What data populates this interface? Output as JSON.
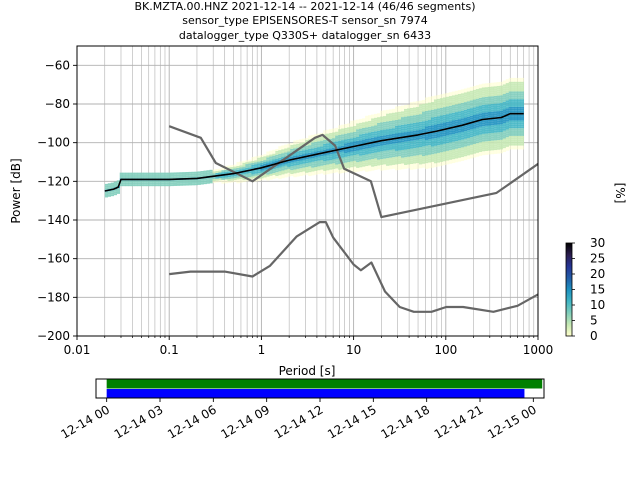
{
  "title": {
    "line1": "BK.MZTA.00.HNZ   2021-12-14 -- 2021-12-14  (46/46 segments)",
    "line2": "sensor_type EPISENSORES-T sensor_sn 7974",
    "line3": "datalogger_type Q330S+ datalogger_sn 6433"
  },
  "chart_data": [
    {
      "type": "heatmap",
      "xlabel": "Period [s]",
      "ylabel": "Power [dB]",
      "xscale": "log",
      "xlim": [
        0.01,
        1000
      ],
      "ylim": [
        -200,
        -50
      ],
      "x_ticks": [
        {
          "v": 0.01,
          "label": "0.01"
        },
        {
          "v": 0.1,
          "label": "0.1"
        },
        {
          "v": 1,
          "label": "1"
        },
        {
          "v": 10,
          "label": "10"
        },
        {
          "v": 100,
          "label": "100"
        },
        {
          "v": 1000,
          "label": "1000"
        }
      ],
      "y_ticks": [
        {
          "v": -60,
          "label": "−60"
        },
        {
          "v": -80,
          "label": "−80"
        },
        {
          "v": -100,
          "label": "−100"
        },
        {
          "v": -120,
          "label": "−120"
        },
        {
          "v": -140,
          "label": "−140"
        },
        {
          "v": -160,
          "label": "−160"
        },
        {
          "v": -180,
          "label": "−180"
        },
        {
          "v": -200,
          "label": "−200"
        }
      ],
      "grid": true,
      "series": [
        {
          "role": "mean",
          "color": "#000000",
          "points": [
            [
              0.02,
              -125
            ],
            [
              0.025,
              -124
            ],
            [
              0.028,
              -123
            ],
            [
              0.03,
              -119
            ],
            [
              0.05,
              -119
            ],
            [
              0.1,
              -119
            ],
            [
              0.2,
              -118.5
            ],
            [
              0.5,
              -116
            ],
            [
              1,
              -113
            ],
            [
              2,
              -109
            ],
            [
              5,
              -105
            ],
            [
              10,
              -102
            ],
            [
              20,
              -99
            ],
            [
              50,
              -96
            ],
            [
              80,
              -94
            ],
            [
              150,
              -91
            ],
            [
              250,
              -88
            ],
            [
              400,
              -87
            ],
            [
              500,
              -85
            ],
            [
              700,
              -85
            ]
          ]
        },
        {
          "role": "noise-model-high",
          "color": "#666666",
          "points": [
            [
              0.1,
              -91.5
            ],
            [
              0.22,
              -97.5
            ],
            [
              0.32,
              -110.5
            ],
            [
              0.8,
              -120
            ],
            [
              3.8,
              -97.5
            ],
            [
              4.6,
              -96
            ],
            [
              6.3,
              -101.5
            ],
            [
              7.9,
              -113.5
            ],
            [
              15.4,
              -120
            ],
            [
              20,
              -138.5
            ],
            [
              354.8,
              -126
            ],
            [
              1000,
              -111
            ]
          ]
        },
        {
          "role": "noise-model-low",
          "color": "#666666",
          "points": [
            [
              0.1,
              -168
            ],
            [
              0.17,
              -166.7
            ],
            [
              0.4,
              -166.7
            ],
            [
              0.8,
              -169.2
            ],
            [
              1.24,
              -163.7
            ],
            [
              2.4,
              -148.6
            ],
            [
              4.3,
              -141.1
            ],
            [
              5,
              -141.1
            ],
            [
              6,
              -149
            ],
            [
              10,
              -163
            ],
            [
              12,
              -166
            ],
            [
              15.6,
              -162
            ],
            [
              21.9,
              -177
            ],
            [
              31.6,
              -185
            ],
            [
              45,
              -187.5
            ],
            [
              70,
              -187.5
            ],
            [
              101,
              -185
            ],
            [
              154,
              -185
            ],
            [
              328,
              -187.5
            ],
            [
              600,
              -184.4
            ],
            [
              1000,
              -178.5
            ]
          ]
        }
      ],
      "colorbar": {
        "label": "[%]",
        "min": 0,
        "max": 30,
        "ticks": [
          {
            "v": 0,
            "label": "0"
          },
          {
            "v": 5,
            "label": "5"
          },
          {
            "v": 10,
            "label": "10"
          },
          {
            "v": 15,
            "label": "15"
          },
          {
            "v": 20,
            "label": "20"
          },
          {
            "v": 25,
            "label": "25"
          },
          {
            "v": 30,
            "label": "30"
          }
        ],
        "colors": [
          "#ffffcc",
          "#c7e9b4",
          "#7fcdbb",
          "#41b6c4",
          "#1d91c0",
          "#225ea8",
          "#253494",
          "#2c1e50",
          "#000000"
        ]
      }
    },
    {
      "type": "bar",
      "role": "data-coverage",
      "xlim_hours": [
        -0.6,
        24.6
      ],
      "ticks": [
        {
          "v": 0,
          "label": "12-14 00"
        },
        {
          "v": 3,
          "label": "12-14 03"
        },
        {
          "v": 6,
          "label": "12-14 06"
        },
        {
          "v": 9,
          "label": "12-14 09"
        },
        {
          "v": 12,
          "label": "12-14 12"
        },
        {
          "v": 15,
          "label": "12-14 15"
        },
        {
          "v": 18,
          "label": "12-14 18"
        },
        {
          "v": 21,
          "label": "12-14 21"
        },
        {
          "v": 24,
          "label": "12-15 00"
        }
      ],
      "bars": [
        {
          "role": "data-available",
          "color": "#008000",
          "start_hour": 0,
          "end_hour": 24.5
        },
        {
          "role": "psd-segments-used",
          "color": "#0000ff",
          "start_hour": 0,
          "end_hour": 23.5
        }
      ]
    }
  ]
}
